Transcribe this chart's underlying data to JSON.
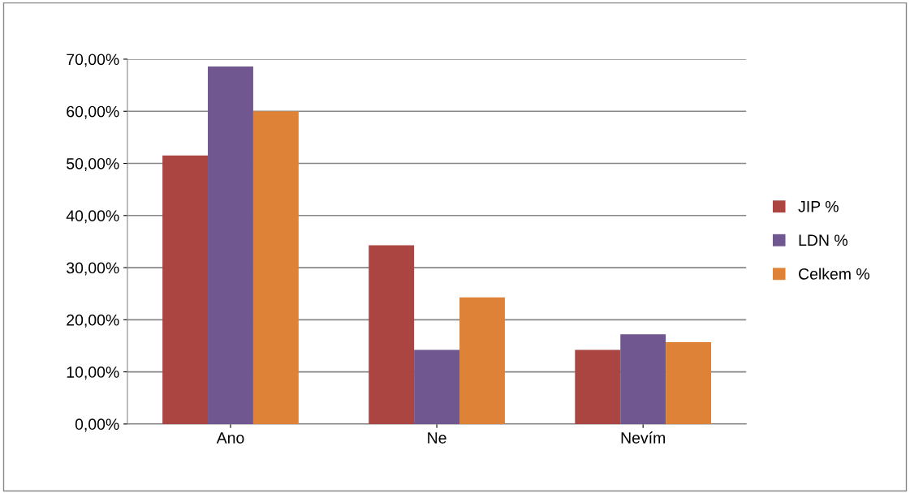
{
  "chart_data": {
    "type": "bar",
    "categories": [
      "Ano",
      "Ne",
      "Nevím"
    ],
    "series": [
      {
        "name": "JIP %",
        "color": "#ab4542",
        "values": [
          51.5,
          34.3,
          14.2
        ]
      },
      {
        "name": "LDN %",
        "color": "#71578f",
        "values": [
          68.6,
          14.2,
          17.2
        ]
      },
      {
        "name": "Celkem %",
        "color": "#dd8237",
        "values": [
          60.0,
          24.3,
          15.7
        ]
      }
    ],
    "ylim": [
      0,
      70
    ],
    "yticks": [
      {
        "value": 0,
        "label": "0,00%"
      },
      {
        "value": 10,
        "label": "10,00%"
      },
      {
        "value": 20,
        "label": "20,00%"
      },
      {
        "value": 30,
        "label": "30,00%"
      },
      {
        "value": 40,
        "label": "40,00%"
      },
      {
        "value": 50,
        "label": "50,00%"
      },
      {
        "value": 60,
        "label": "60,00%"
      },
      {
        "value": 70,
        "label": "70,00%"
      }
    ],
    "grid": "y",
    "legend": "right"
  }
}
